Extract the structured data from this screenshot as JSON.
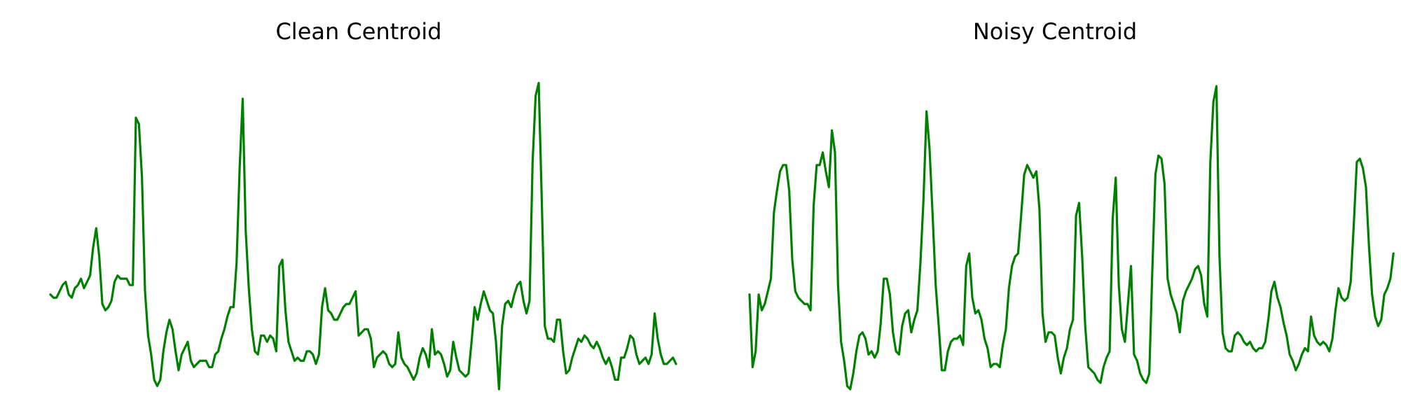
{
  "figure": {
    "line_color": "#008000",
    "background": "#ffffff"
  },
  "chart_data": [
    {
      "type": "line",
      "title": "Clean Centroid",
      "xlabel": "",
      "ylabel": "",
      "grid": false,
      "axes_visible": false,
      "xlim": [
        0,
        202
      ],
      "ylim": [
        0,
        1.02
      ],
      "series": [
        {
          "values": [
            0.3,
            0.29,
            0.29,
            0.31,
            0.33,
            0.34,
            0.3,
            0.29,
            0.32,
            0.33,
            0.35,
            0.32,
            0.34,
            0.36,
            0.45,
            0.51,
            0.42,
            0.27,
            0.25,
            0.26,
            0.28,
            0.34,
            0.36,
            0.35,
            0.35,
            0.35,
            0.33,
            0.33,
            0.86,
            0.84,
            0.67,
            0.31,
            0.17,
            0.11,
            0.03,
            0.01,
            0.03,
            0.12,
            0.18,
            0.22,
            0.19,
            0.12,
            0.06,
            0.11,
            0.13,
            0.15,
            0.09,
            0.07,
            0.08,
            0.09,
            0.09,
            0.09,
            0.07,
            0.07,
            0.11,
            0.12,
            0.16,
            0.19,
            0.23,
            0.26,
            0.26,
            0.4,
            0.7,
            0.92,
            0.5,
            0.32,
            0.19,
            0.12,
            0.11,
            0.17,
            0.17,
            0.15,
            0.17,
            0.16,
            0.12,
            0.39,
            0.41,
            0.25,
            0.15,
            0.12,
            0.09,
            0.1,
            0.09,
            0.09,
            0.12,
            0.12,
            0.11,
            0.08,
            0.11,
            0.26,
            0.32,
            0.25,
            0.24,
            0.22,
            0.22,
            0.24,
            0.26,
            0.27,
            0.27,
            0.29,
            0.31,
            0.17,
            0.18,
            0.19,
            0.19,
            0.16,
            0.07,
            0.1,
            0.11,
            0.12,
            0.11,
            0.08,
            0.07,
            0.08,
            0.18,
            0.1,
            0.08,
            0.07,
            0.05,
            0.03,
            0.05,
            0.1,
            0.13,
            0.11,
            0.07,
            0.19,
            0.11,
            0.12,
            0.11,
            0.08,
            0.04,
            0.06,
            0.15,
            0.1,
            0.06,
            0.05,
            0.04,
            0.05,
            0.15,
            0.26,
            0.22,
            0.27,
            0.31,
            0.28,
            0.25,
            0.24,
            0.15,
            0.0,
            0.2,
            0.27,
            0.28,
            0.26,
            0.3,
            0.33,
            0.34,
            0.28,
            0.24,
            0.28,
            0.72,
            0.93,
            0.97,
            0.6,
            0.2,
            0.16,
            0.16,
            0.15,
            0.22,
            0.22,
            0.12,
            0.05,
            0.06,
            0.1,
            0.13,
            0.16,
            0.15,
            0.17,
            0.16,
            0.14,
            0.13,
            0.15,
            0.13,
            0.1,
            0.08,
            0.1,
            0.07,
            0.03,
            0.03,
            0.1,
            0.1,
            0.13,
            0.17,
            0.16,
            0.11,
            0.08,
            0.09,
            0.1,
            0.08,
            0.11,
            0.24,
            0.16,
            0.11,
            0.08,
            0.08,
            0.09,
            0.1,
            0.08
          ]
        }
      ]
    },
    {
      "type": "line",
      "title": "Noisy Centroid",
      "xlabel": "",
      "ylabel": "",
      "grid": false,
      "axes_visible": false,
      "xlim": [
        0,
        202
      ],
      "ylim": [
        0,
        1.02
      ],
      "series": [
        {
          "values": [
            0.3,
            0.07,
            0.12,
            0.3,
            0.25,
            0.27,
            0.31,
            0.35,
            0.56,
            0.63,
            0.69,
            0.71,
            0.71,
            0.63,
            0.41,
            0.31,
            0.29,
            0.28,
            0.27,
            0.27,
            0.25,
            0.58,
            0.71,
            0.71,
            0.75,
            0.69,
            0.64,
            0.82,
            0.75,
            0.33,
            0.15,
            0.09,
            0.01,
            0.0,
            0.05,
            0.12,
            0.17,
            0.18,
            0.16,
            0.11,
            0.12,
            0.1,
            0.12,
            0.21,
            0.35,
            0.35,
            0.3,
            0.18,
            0.12,
            0.11,
            0.2,
            0.24,
            0.25,
            0.18,
            0.22,
            0.25,
            0.4,
            0.6,
            0.88,
            0.76,
            0.55,
            0.33,
            0.2,
            0.06,
            0.06,
            0.12,
            0.15,
            0.16,
            0.16,
            0.17,
            0.14,
            0.39,
            0.43,
            0.29,
            0.24,
            0.25,
            0.22,
            0.16,
            0.13,
            0.07,
            0.08,
            0.08,
            0.07,
            0.14,
            0.19,
            0.32,
            0.39,
            0.42,
            0.43,
            0.55,
            0.68,
            0.71,
            0.69,
            0.67,
            0.69,
            0.57,
            0.24,
            0.15,
            0.18,
            0.18,
            0.17,
            0.1,
            0.05,
            0.1,
            0.13,
            0.19,
            0.22,
            0.55,
            0.59,
            0.42,
            0.2,
            0.07,
            0.06,
            0.05,
            0.03,
            0.02,
            0.07,
            0.1,
            0.12,
            0.54,
            0.67,
            0.33,
            0.19,
            0.15,
            0.27,
            0.39,
            0.11,
            0.09,
            0.05,
            0.03,
            0.02,
            0.05,
            0.38,
            0.68,
            0.74,
            0.73,
            0.65,
            0.35,
            0.3,
            0.27,
            0.24,
            0.18,
            0.28,
            0.31,
            0.33,
            0.35,
            0.38,
            0.39,
            0.36,
            0.27,
            0.23,
            0.72,
            0.91,
            0.96,
            0.42,
            0.18,
            0.13,
            0.12,
            0.12,
            0.17,
            0.18,
            0.17,
            0.15,
            0.14,
            0.15,
            0.13,
            0.12,
            0.13,
            0.13,
            0.15,
            0.22,
            0.31,
            0.34,
            0.29,
            0.26,
            0.21,
            0.17,
            0.11,
            0.09,
            0.06,
            0.08,
            0.11,
            0.13,
            0.12,
            0.23,
            0.17,
            0.15,
            0.14,
            0.15,
            0.14,
            0.12,
            0.16,
            0.25,
            0.32,
            0.29,
            0.28,
            0.29,
            0.34,
            0.52,
            0.72,
            0.73,
            0.7,
            0.64,
            0.45,
            0.3,
            0.23,
            0.2,
            0.22,
            0.3,
            0.32,
            0.35,
            0.43
          ]
        }
      ]
    }
  ]
}
